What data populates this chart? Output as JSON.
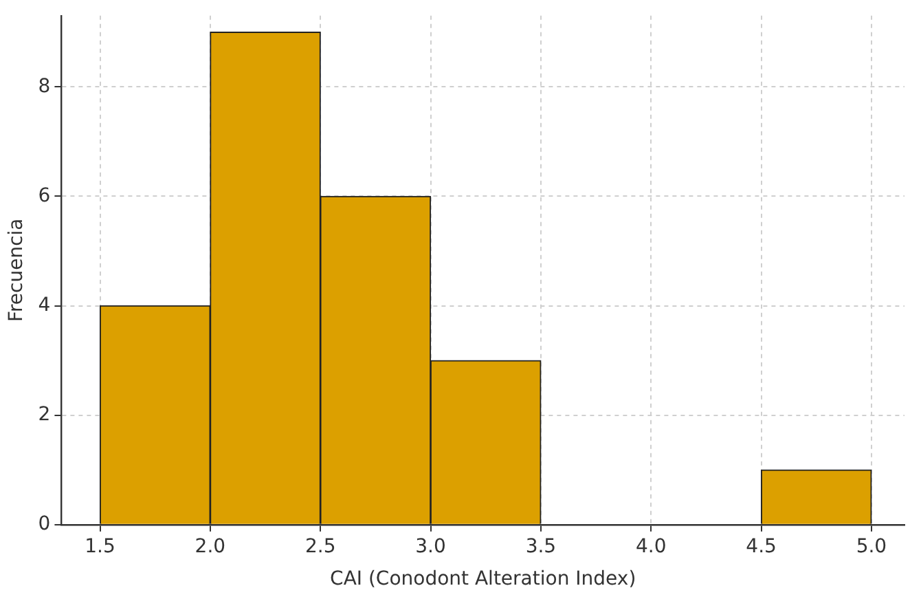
{
  "chart_data": {
    "type": "histogram",
    "xlabel": "CAI (Conodont Alteration Index)",
    "ylabel": "Frecuencia",
    "bins": [
      1.5,
      2.0,
      2.5,
      3.0,
      3.5,
      4.0,
      4.5,
      5.0
    ],
    "values": [
      4,
      9,
      6,
      3,
      0,
      0,
      1
    ],
    "color": "#dca000",
    "xlim": [
      1.325,
      5.15
    ],
    "xticks": [
      1.5,
      {
        "value": 2,
        "label": "2.0"
      },
      2.5,
      {
        "value": 3,
        "label": "3.0"
      },
      3.5,
      {
        "value": 4,
        "label": "4.0"
      },
      4.5,
      {
        "value": 5,
        "label": "5.0"
      }
    ],
    "ylim": [
      0,
      9.3
    ],
    "yticks": [
      0,
      2,
      4,
      6,
      8
    ],
    "grid": true,
    "legend": false
  }
}
